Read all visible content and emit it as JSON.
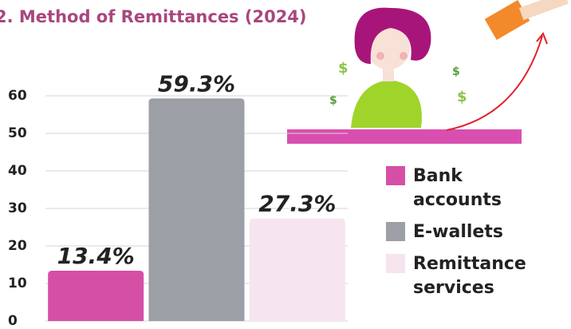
{
  "chart_data": {
    "type": "bar",
    "title": "2. Method of Remittances (2024)",
    "categories": [
      "Bank accounts",
      "E-wallets",
      "Remittance services"
    ],
    "values": [
      13.4,
      59.3,
      27.3
    ],
    "value_labels": [
      "13.4%",
      "59.3%",
      "27.3%"
    ],
    "colors": [
      "#d64fa6",
      "#9c9fa6",
      "#f6e4ee"
    ],
    "ylim": [
      0,
      60
    ],
    "yticks": [
      0,
      10,
      20,
      30,
      40,
      50,
      60
    ],
    "grid": true
  }
}
